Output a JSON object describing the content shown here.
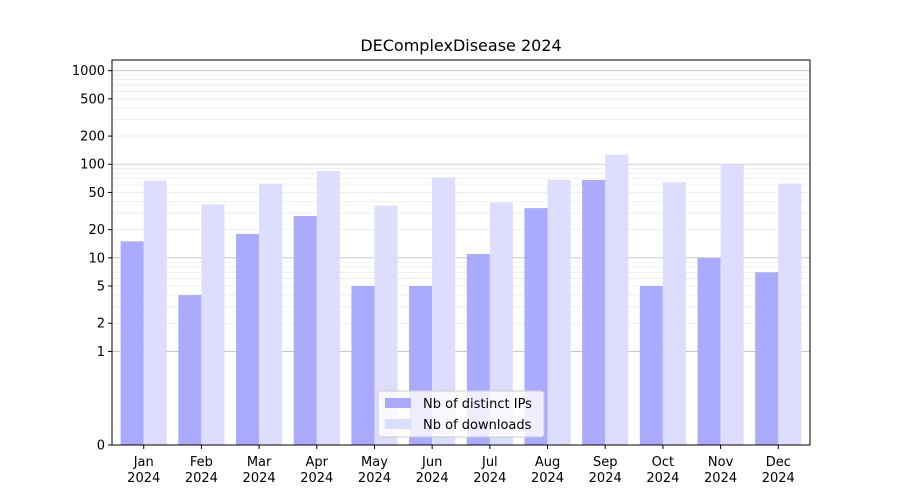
{
  "chart_data": {
    "type": "bar",
    "title": "DEComplexDisease 2024",
    "yscale": "symlog",
    "ylim": [
      0,
      1300
    ],
    "ytick_values": [
      0,
      1,
      2,
      5,
      10,
      20,
      50,
      100,
      200,
      500,
      1000
    ],
    "ytick_labels": [
      "0",
      "1",
      "2",
      "5",
      "10",
      "20",
      "50",
      "100",
      "200",
      "500",
      "1000"
    ],
    "categories": [
      "Jan\n2024",
      "Feb\n2024",
      "Mar\n2024",
      "Apr\n2024",
      "May\n2024",
      "Jun\n2024",
      "Jul\n2024",
      "Aug\n2024",
      "Sep\n2024",
      "Oct\n2024",
      "Nov\n2024",
      "Dec\n2024"
    ],
    "series": [
      {
        "name": "Nb of distinct IPs",
        "color": "#aaaaff",
        "values": [
          15,
          4,
          18,
          28,
          5,
          5,
          11,
          34,
          68,
          5,
          10,
          7
        ]
      },
      {
        "name": "Nb of downloads",
        "color": "#ddddff",
        "values": [
          67,
          37,
          62,
          85,
          36,
          72,
          39,
          68,
          127,
          64,
          100,
          62
        ]
      }
    ],
    "grid": true,
    "legend_position": "bottom-center"
  }
}
